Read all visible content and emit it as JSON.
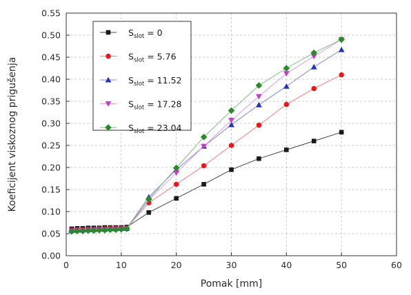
{
  "chart_data": {
    "type": "line",
    "xlabel": "Pomak [mm]",
    "ylabel": "Koeficijent viskoznog prigušenja",
    "xlim": [
      0,
      60
    ],
    "ylim": [
      0,
      0.55
    ],
    "x_ticks": [
      0,
      10,
      20,
      30,
      40,
      50,
      60
    ],
    "y_ticks": [
      0.0,
      0.05,
      0.1,
      0.15,
      0.2,
      0.25,
      0.3,
      0.35,
      0.4,
      0.45,
      0.5,
      0.55
    ],
    "grid": true,
    "legend_position": "top-left",
    "x": [
      1,
      2,
      3,
      4,
      5,
      6,
      7,
      8,
      9,
      10,
      11,
      15,
      20,
      25,
      30,
      35,
      40,
      45,
      50
    ],
    "series": [
      {
        "label_main": "S",
        "label_sub": "slot",
        "label_value": " = 0",
        "marker": "square",
        "color": "#1a1a1a",
        "line_color": "#444444",
        "values": [
          0.061,
          0.062,
          0.062,
          0.063,
          0.063,
          0.063,
          0.064,
          0.064,
          0.064,
          0.064,
          0.065,
          0.098,
          0.13,
          0.162,
          0.195,
          0.22,
          0.24,
          0.26,
          0.28
        ]
      },
      {
        "label_main": "S",
        "label_sub": "slot",
        "label_value": " = 5.76",
        "marker": "circle",
        "color": "#e8191c",
        "line_color": "#f08080",
        "values": [
          0.058,
          0.059,
          0.059,
          0.06,
          0.06,
          0.061,
          0.061,
          0.062,
          0.062,
          0.062,
          0.063,
          0.12,
          0.162,
          0.204,
          0.25,
          0.296,
          0.343,
          0.379,
          0.41
        ]
      },
      {
        "label_main": "S",
        "label_sub": "slot",
        "label_value": " = 11.52",
        "marker": "triangle-up",
        "color": "#2434b8",
        "line_color": "#7f86d8",
        "values": [
          0.057,
          0.058,
          0.058,
          0.059,
          0.059,
          0.06,
          0.06,
          0.061,
          0.061,
          0.062,
          0.062,
          0.133,
          0.195,
          0.248,
          0.297,
          0.342,
          0.384,
          0.428,
          0.467
        ]
      },
      {
        "label_main": "S",
        "label_sub": "slot",
        "label_value": " = 17.28",
        "marker": "triangle-down",
        "color": "#c83cc8",
        "line_color": "#e29ee2",
        "values": [
          0.056,
          0.057,
          0.057,
          0.058,
          0.058,
          0.059,
          0.059,
          0.06,
          0.06,
          0.061,
          0.061,
          0.126,
          0.188,
          0.248,
          0.307,
          0.361,
          0.413,
          0.452,
          0.49
        ]
      },
      {
        "label_main": "S",
        "label_sub": "slot",
        "label_value": " = 23.04",
        "marker": "diamond",
        "color": "#2a8a2a",
        "line_color": "#7cba7c",
        "values": [
          0.055,
          0.056,
          0.056,
          0.057,
          0.057,
          0.058,
          0.058,
          0.059,
          0.059,
          0.06,
          0.061,
          0.128,
          0.199,
          0.269,
          0.329,
          0.386,
          0.425,
          0.46,
          0.49
        ]
      }
    ]
  }
}
